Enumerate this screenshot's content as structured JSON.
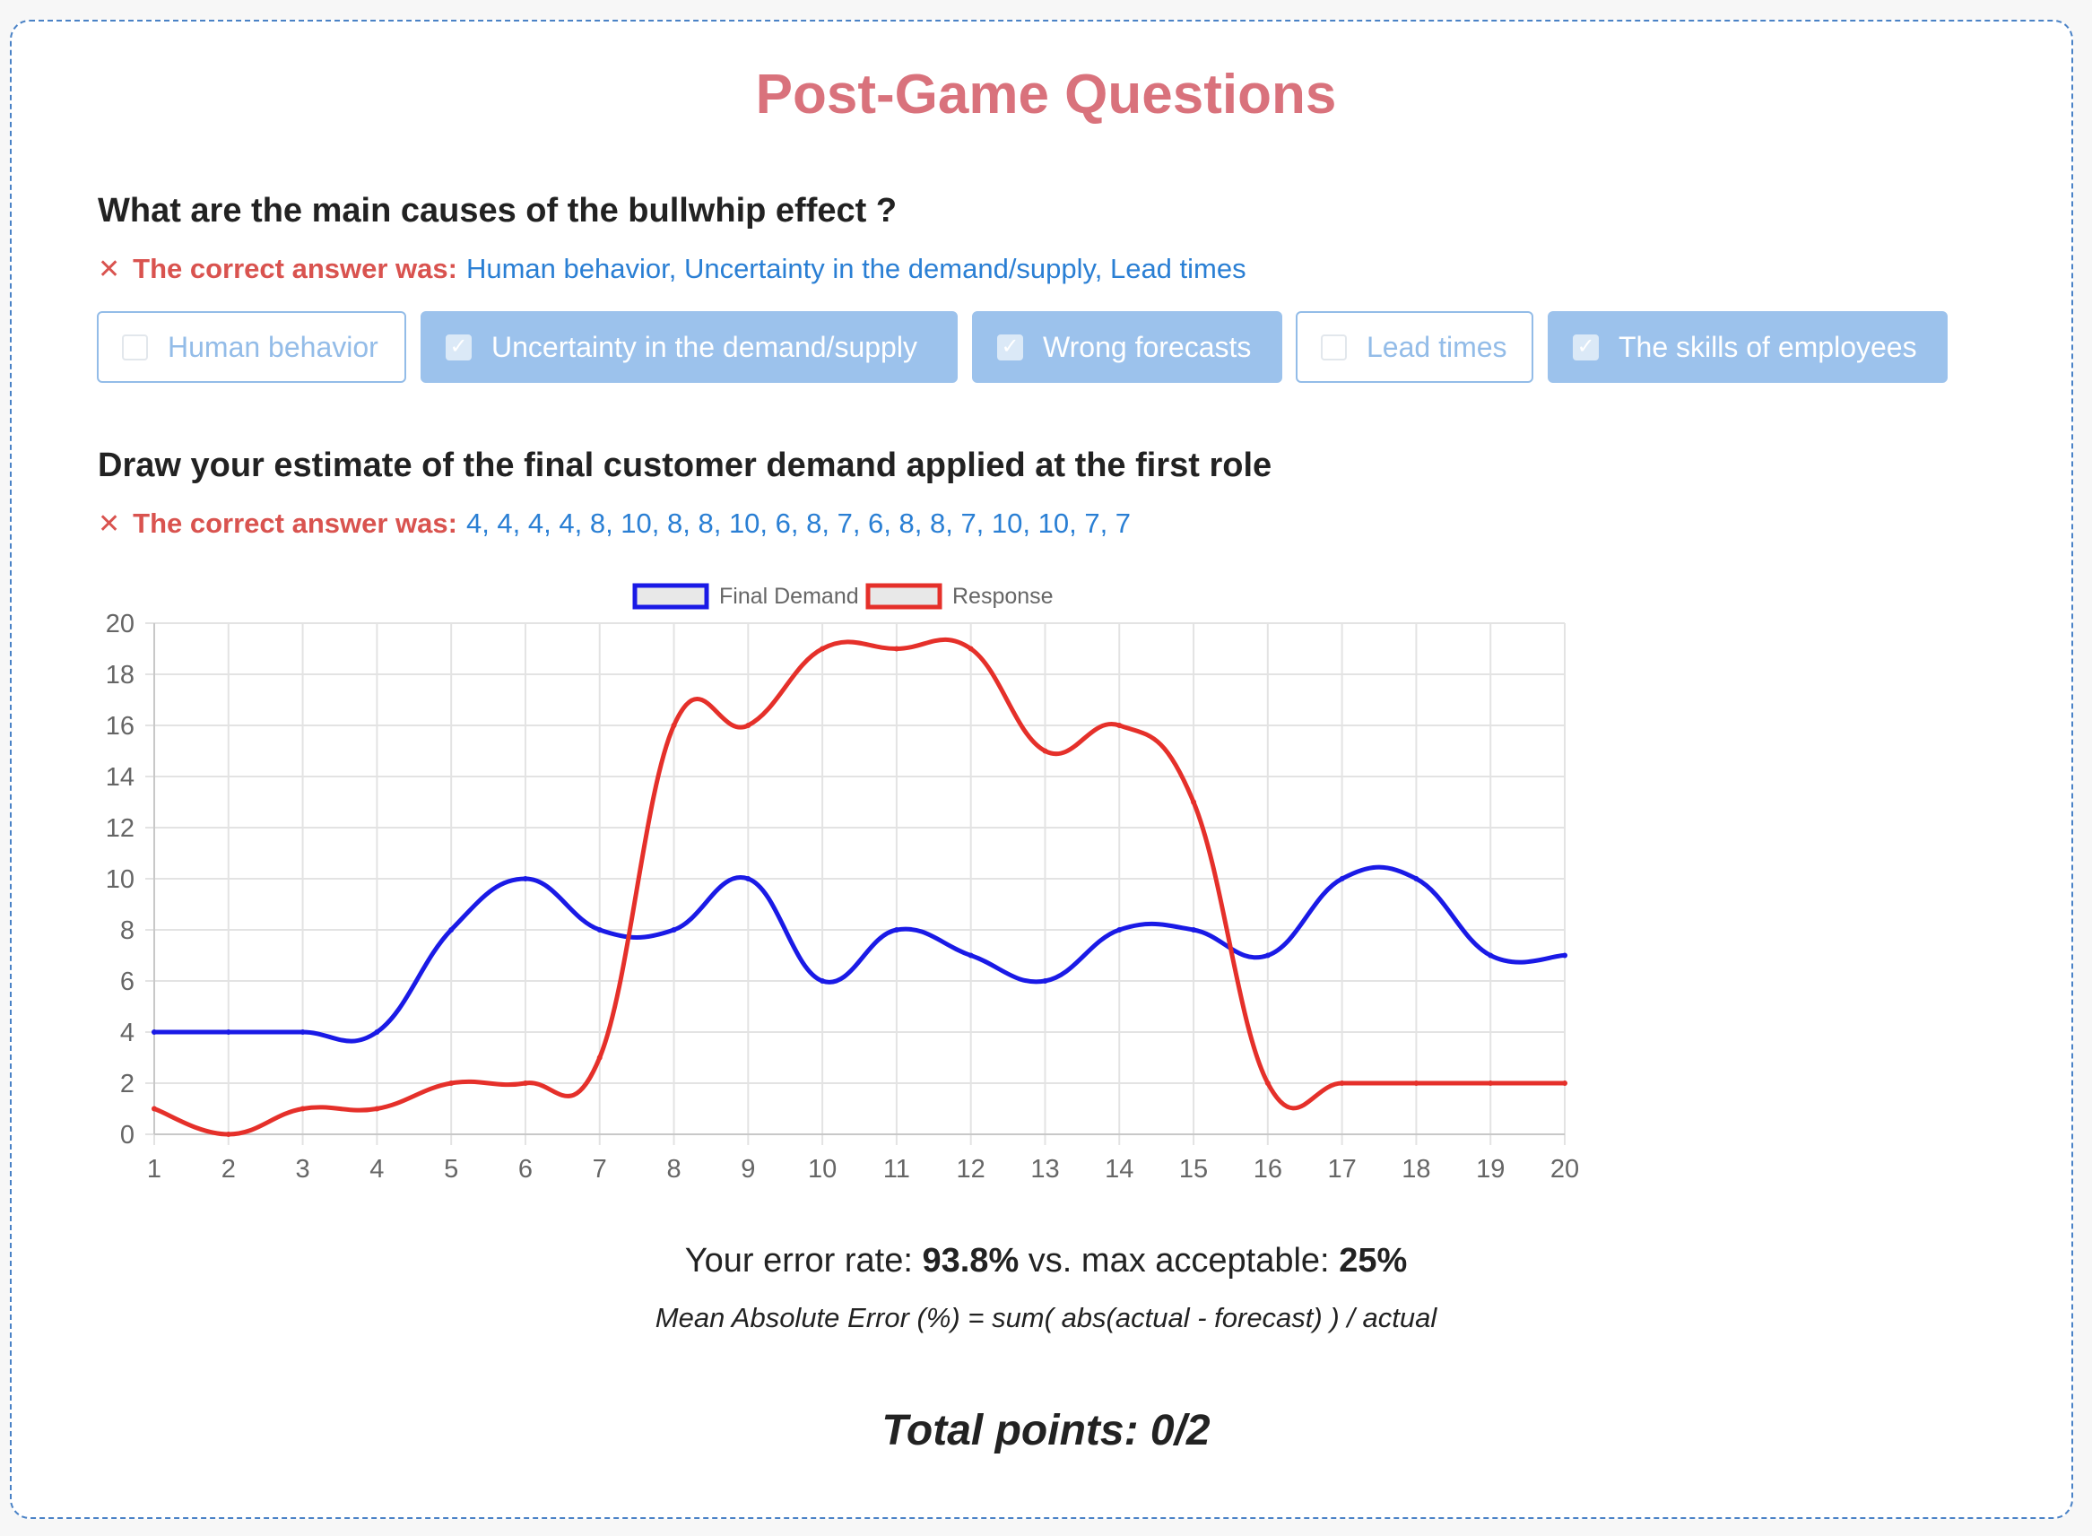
{
  "page": {
    "title": "Post-Game Questions"
  },
  "q1": {
    "question": "What are the main causes of the bullwhip effect ?",
    "answer_prefix": "The correct answer was:",
    "answer_value": "Human behavior, Uncertainty in the demand/supply, Lead times",
    "options": [
      {
        "label": "Human behavior",
        "checked": false
      },
      {
        "label": "Uncertainty in the demand/supply",
        "checked": true
      },
      {
        "label": "Wrong forecasts",
        "checked": true
      },
      {
        "label": "Lead times",
        "checked": false
      },
      {
        "label": "The skills of employees",
        "checked": true
      }
    ]
  },
  "q2": {
    "question": "Draw your estimate of the final customer demand applied at the first role",
    "answer_prefix": "The correct answer was:",
    "answer_value": "4, 4, 4, 4, 8, 10, 8, 8, 10, 6, 8, 7, 6, 8, 8, 7, 10, 10, 7, 7"
  },
  "icons": {
    "wrong": "close-icon",
    "checkmark": "check-icon"
  },
  "result": {
    "error_prefix": "Your error rate:",
    "error_value": "93.8%",
    "error_mid": "vs. max acceptable:",
    "error_max": "25%",
    "formula": "Mean Absolute Error (%) = sum( abs(actual - forecast) ) / actual",
    "total": "Total points: 0/2"
  },
  "colors": {
    "title": "#d9727c",
    "wrong": "#d9534f",
    "link": "#2a7fd4",
    "demand": "#1a1ae6",
    "response": "#e5302a"
  },
  "chart_data": {
    "type": "line",
    "x": [
      1,
      2,
      3,
      4,
      5,
      6,
      7,
      8,
      9,
      10,
      11,
      12,
      13,
      14,
      15,
      16,
      17,
      18,
      19,
      20
    ],
    "series": [
      {
        "name": "Final Demand",
        "color": "#1a1ae6",
        "values": [
          4,
          4,
          4,
          4,
          8,
          10,
          8,
          8,
          10,
          6,
          8,
          7,
          6,
          8,
          8,
          7,
          10,
          10,
          7,
          7
        ]
      },
      {
        "name": "Response",
        "color": "#e5302a",
        "values": [
          1,
          0,
          1,
          1,
          2,
          2,
          3,
          16,
          16,
          19,
          19,
          19,
          15,
          16,
          13,
          2,
          2,
          2,
          2,
          2
        ]
      }
    ],
    "xlim": [
      1,
      20
    ],
    "ylim": [
      0,
      20
    ],
    "yticks": [
      0,
      2,
      4,
      6,
      8,
      10,
      12,
      14,
      16,
      18,
      20
    ],
    "grid": true,
    "legend": "top"
  }
}
